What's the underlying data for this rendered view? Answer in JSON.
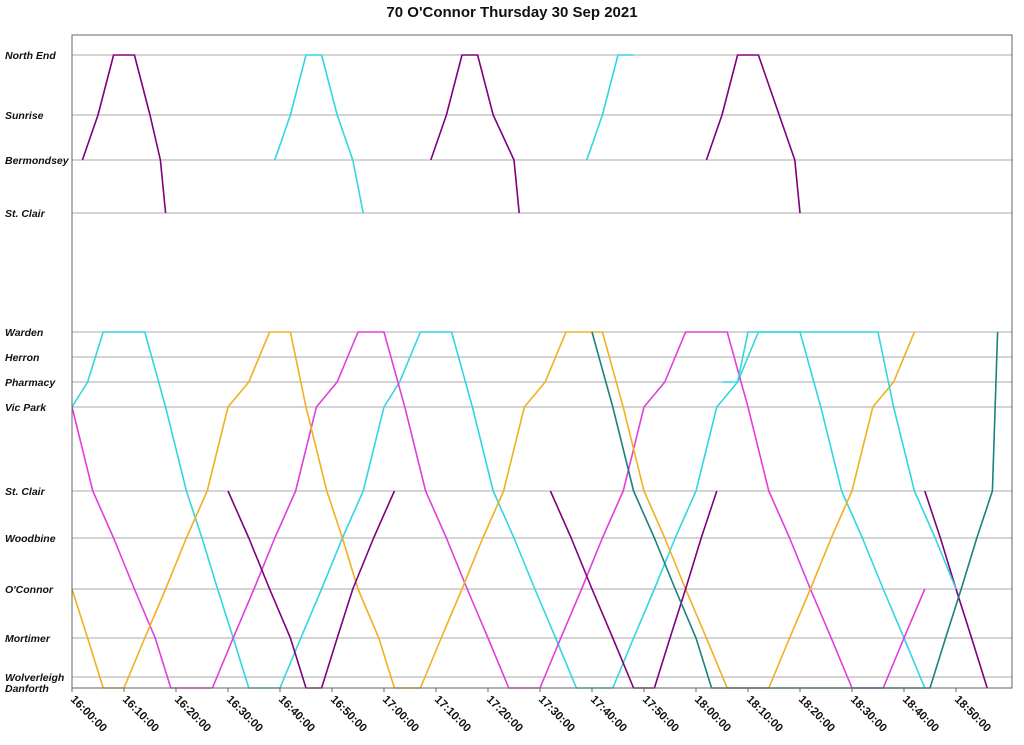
{
  "chart_data": {
    "type": "line",
    "title": "70 O'Connor Thursday 30 Sep 2021",
    "xlabel": "",
    "ylabel": "",
    "grid": true,
    "stops": [
      "North End",
      "Sunrise",
      "Bermondsey",
      "St. Clair",
      "Warden",
      "Herron",
      "Pharmacy",
      "Vic Park",
      "St. Clair",
      "Woodbine",
      "O'Connor",
      "Mortimer",
      "Wolverleigh",
      "Danforth"
    ],
    "x_ticks": [
      "16:00:00",
      "16:10:00",
      "16:20:00",
      "16:30:00",
      "16:40:00",
      "16:50:00",
      "17:00:00",
      "17:10:00",
      "17:20:00",
      "17:30:00",
      "17:40:00",
      "17:50:00",
      "18:00:00",
      "18:10:00",
      "18:20:00",
      "18:30:00",
      "18:40:00",
      "18:50:00"
    ],
    "x_range": [
      "16:00:00",
      "18:58:00"
    ],
    "colors": {
      "purple": "#800080",
      "cyan": "#33d6e0",
      "magenta": "#e040d8",
      "gold": "#f0b020",
      "teal": "#1a8080"
    },
    "series": [
      {
        "color": "purple",
        "points": [
          [
            "16:02",
            "Bermondsey"
          ],
          [
            "16:05",
            "Sunrise"
          ],
          [
            "16:08",
            "North End"
          ],
          [
            "16:10",
            "North End"
          ],
          [
            "16:12",
            "North End"
          ],
          [
            "16:15",
            "Sunrise"
          ],
          [
            "16:17",
            "Bermondsey"
          ],
          [
            "16:18",
            "St. Clair"
          ]
        ]
      },
      {
        "color": "cyan",
        "points": [
          [
            "16:39",
            "Bermondsey"
          ],
          [
            "16:42",
            "Sunrise"
          ],
          [
            "16:45",
            "North End"
          ],
          [
            "16:48",
            "North End"
          ],
          [
            "16:51",
            "Sunrise"
          ],
          [
            "16:54",
            "Bermondsey"
          ],
          [
            "16:56",
            "St. Clair"
          ]
        ]
      },
      {
        "color": "purple",
        "points": [
          [
            "17:09",
            "Bermondsey"
          ],
          [
            "17:12",
            "Sunrise"
          ],
          [
            "17:15",
            "North End"
          ],
          [
            "17:18",
            "North End"
          ],
          [
            "17:21",
            "Sunrise"
          ],
          [
            "17:25",
            "Bermondsey"
          ],
          [
            "17:26",
            "St. Clair"
          ]
        ]
      },
      {
        "color": "cyan",
        "points": [
          [
            "17:39",
            "Bermondsey"
          ],
          [
            "17:42",
            "Sunrise"
          ],
          [
            "17:45",
            "North End"
          ],
          [
            "17:48",
            "North End"
          ]
        ]
      },
      {
        "color": "purple",
        "points": [
          [
            "18:02",
            "Bermondsey"
          ],
          [
            "18:05",
            "Sunrise"
          ],
          [
            "18:08",
            "North End"
          ],
          [
            "18:12",
            "North End"
          ],
          [
            "18:16",
            "Sunrise"
          ],
          [
            "18:19",
            "Bermondsey"
          ],
          [
            "18:20",
            "St. Clair"
          ]
        ]
      },
      {
        "color": "cyan",
        "points": [
          [
            "16:00",
            "Vic Park"
          ],
          [
            "16:03",
            "Pharmacy"
          ],
          [
            "16:06",
            "Warden"
          ],
          [
            "16:14",
            "Warden"
          ],
          [
            "16:18",
            "Vic Park"
          ],
          [
            "16:22",
            "St. Clair"
          ],
          [
            "16:25",
            "Woodbine"
          ],
          [
            "16:28",
            "O'Connor"
          ],
          [
            "16:31",
            "Mortimer"
          ],
          [
            "16:34",
            "Danforth"
          ],
          [
            "16:40",
            "Danforth"
          ],
          [
            "16:44",
            "Mortimer"
          ],
          [
            "16:48",
            "O'Connor"
          ],
          [
            "16:52",
            "Woodbine"
          ],
          [
            "16:56",
            "St. Clair"
          ],
          [
            "17:00",
            "Vic Park"
          ],
          [
            "17:03",
            "Pharmacy"
          ],
          [
            "17:07",
            "Warden"
          ],
          [
            "17:13",
            "Warden"
          ],
          [
            "17:17",
            "Vic Park"
          ],
          [
            "17:21",
            "St. Clair"
          ],
          [
            "17:25",
            "Woodbine"
          ],
          [
            "17:29",
            "O'Connor"
          ],
          [
            "17:33",
            "Mortimer"
          ],
          [
            "17:37",
            "Danforth"
          ],
          [
            "17:44",
            "Danforth"
          ],
          [
            "17:48",
            "Mortimer"
          ],
          [
            "17:52",
            "O'Connor"
          ],
          [
            "17:56",
            "Woodbine"
          ],
          [
            "18:00",
            "St. Clair"
          ],
          [
            "18:04",
            "Vic Park"
          ],
          [
            "18:08",
            "Pharmacy"
          ],
          [
            "18:12",
            "Warden"
          ],
          [
            "18:20",
            "Warden"
          ],
          [
            "18:24",
            "Vic Park"
          ],
          [
            "18:28",
            "St. Clair"
          ],
          [
            "18:32",
            "Woodbine"
          ],
          [
            "18:36",
            "O'Connor"
          ],
          [
            "18:40",
            "Mortimer"
          ],
          [
            "18:44",
            "Danforth"
          ]
        ]
      },
      {
        "color": "magenta",
        "points": [
          [
            "16:00",
            "Vic Park"
          ],
          [
            "16:04",
            "St. Clair"
          ],
          [
            "16:08",
            "Woodbine"
          ],
          [
            "16:12",
            "O'Connor"
          ],
          [
            "16:16",
            "Mortimer"
          ],
          [
            "16:19",
            "Danforth"
          ],
          [
            "16:27",
            "Danforth"
          ],
          [
            "16:31",
            "Mortimer"
          ],
          [
            "16:35",
            "O'Connor"
          ],
          [
            "16:39",
            "Woodbine"
          ],
          [
            "16:43",
            "St. Clair"
          ],
          [
            "16:47",
            "Vic Park"
          ],
          [
            "16:51",
            "Pharmacy"
          ],
          [
            "16:55",
            "Warden"
          ],
          [
            "17:00",
            "Warden"
          ],
          [
            "17:04",
            "Vic Park"
          ],
          [
            "17:08",
            "St. Clair"
          ],
          [
            "17:12",
            "Woodbine"
          ],
          [
            "17:16",
            "O'Connor"
          ],
          [
            "17:20",
            "Mortimer"
          ],
          [
            "17:24",
            "Danforth"
          ],
          [
            "17:30",
            "Danforth"
          ],
          [
            "17:34",
            "Mortimer"
          ],
          [
            "17:38",
            "O'Connor"
          ],
          [
            "17:42",
            "Woodbine"
          ],
          [
            "17:46",
            "St. Clair"
          ],
          [
            "17:50",
            "Vic Park"
          ],
          [
            "17:54",
            "Pharmacy"
          ],
          [
            "17:58",
            "Warden"
          ],
          [
            "18:06",
            "Warden"
          ],
          [
            "18:10",
            "Vic Park"
          ],
          [
            "18:14",
            "St. Clair"
          ],
          [
            "18:18",
            "Woodbine"
          ],
          [
            "18:22",
            "O'Connor"
          ],
          [
            "18:26",
            "Mortimer"
          ],
          [
            "18:30",
            "Danforth"
          ],
          [
            "18:36",
            "Danforth"
          ],
          [
            "18:40",
            "Mortimer"
          ],
          [
            "18:44",
            "O'Connor"
          ]
        ]
      },
      {
        "color": "gold",
        "points": [
          [
            "16:00",
            "O'Connor"
          ],
          [
            "16:03",
            "Mortimer"
          ],
          [
            "16:06",
            "Danforth"
          ],
          [
            "16:10",
            "Danforth"
          ],
          [
            "16:14",
            "Mortimer"
          ],
          [
            "16:18",
            "O'Connor"
          ],
          [
            "16:22",
            "Woodbine"
          ],
          [
            "16:26",
            "St. Clair"
          ],
          [
            "16:30",
            "Vic Park"
          ],
          [
            "16:34",
            "Pharmacy"
          ],
          [
            "16:38",
            "Warden"
          ],
          [
            "16:42",
            "Warden"
          ],
          [
            "16:45",
            "Vic Park"
          ],
          [
            "16:49",
            "St. Clair"
          ],
          [
            "16:52",
            "Woodbine"
          ],
          [
            "16:55",
            "O'Connor"
          ],
          [
            "16:59",
            "Mortimer"
          ],
          [
            "17:02",
            "Danforth"
          ],
          [
            "17:07",
            "Danforth"
          ],
          [
            "17:11",
            "Mortimer"
          ],
          [
            "17:15",
            "O'Connor"
          ],
          [
            "17:19",
            "Woodbine"
          ],
          [
            "17:23",
            "St. Clair"
          ],
          [
            "17:27",
            "Vic Park"
          ],
          [
            "17:31",
            "Pharmacy"
          ],
          [
            "17:35",
            "Warden"
          ],
          [
            "17:42",
            "Warden"
          ],
          [
            "17:46",
            "Vic Park"
          ],
          [
            "17:50",
            "St. Clair"
          ],
          [
            "17:54",
            "Woodbine"
          ],
          [
            "17:58",
            "O'Connor"
          ],
          [
            "18:02",
            "Mortimer"
          ],
          [
            "18:06",
            "Danforth"
          ],
          [
            "18:14",
            "Danforth"
          ],
          [
            "18:18",
            "Mortimer"
          ],
          [
            "18:22",
            "O'Connor"
          ],
          [
            "18:26",
            "Woodbine"
          ],
          [
            "18:30",
            "St. Clair"
          ],
          [
            "18:34",
            "Vic Park"
          ],
          [
            "18:38",
            "Pharmacy"
          ],
          [
            "18:42",
            "Warden"
          ]
        ]
      },
      {
        "color": "purple",
        "points": [
          [
            "16:30",
            "St. Clair"
          ],
          [
            "16:34",
            "Woodbine"
          ],
          [
            "16:38",
            "O'Connor"
          ],
          [
            "16:42",
            "Mortimer"
          ],
          [
            "16:45",
            "Danforth"
          ],
          [
            "16:48",
            "Danforth"
          ],
          [
            "16:51",
            "Mortimer"
          ],
          [
            "16:54",
            "O'Connor"
          ],
          [
            "16:58",
            "Woodbine"
          ],
          [
            "17:02",
            "St. Clair"
          ]
        ]
      },
      {
        "color": "purple",
        "points": [
          [
            "17:32",
            "St. Clair"
          ],
          [
            "17:36",
            "Woodbine"
          ],
          [
            "17:40",
            "O'Connor"
          ],
          [
            "17:44",
            "Mortimer"
          ],
          [
            "17:48",
            "Danforth"
          ],
          [
            "17:52",
            "Danforth"
          ],
          [
            "17:55",
            "Mortimer"
          ],
          [
            "17:58",
            "O'Connor"
          ],
          [
            "18:01",
            "Woodbine"
          ],
          [
            "18:04",
            "St. Clair"
          ]
        ]
      },
      {
        "color": "purple",
        "points": [
          [
            "18:44",
            "St. Clair"
          ],
          [
            "18:47",
            "Woodbine"
          ],
          [
            "18:50",
            "O'Connor"
          ],
          [
            "18:53",
            "Mortimer"
          ],
          [
            "18:56",
            "Danforth"
          ]
        ]
      },
      {
        "color": "teal",
        "points": [
          [
            "17:40",
            "Warden"
          ],
          [
            "17:44",
            "Vic Park"
          ],
          [
            "17:48",
            "St. Clair"
          ],
          [
            "17:52",
            "Woodbine"
          ],
          [
            "17:56",
            "O'Connor"
          ],
          [
            "18:00",
            "Mortimer"
          ],
          [
            "18:03",
            "Danforth"
          ],
          [
            "18:30",
            "Danforth"
          ],
          [
            "18:45",
            "Danforth"
          ],
          [
            "18:48",
            "Mortimer"
          ],
          [
            "18:51",
            "O'Connor"
          ],
          [
            "18:54",
            "Woodbine"
          ],
          [
            "18:57",
            "St. Clair"
          ],
          [
            "18:58",
            "Warden"
          ]
        ]
      },
      {
        "color": "cyan",
        "points": [
          [
            "18:05",
            "Pharmacy"
          ],
          [
            "18:08",
            "Pharmacy"
          ],
          [
            "18:10",
            "Warden"
          ],
          [
            "18:15",
            "Warden"
          ],
          [
            "18:25",
            "Warden"
          ],
          [
            "18:35",
            "Warden"
          ],
          [
            "18:38",
            "Vic Park"
          ],
          [
            "18:42",
            "St. Clair"
          ],
          [
            "18:46",
            "Woodbine"
          ],
          [
            "18:50",
            "O'Connor"
          ]
        ]
      }
    ]
  }
}
